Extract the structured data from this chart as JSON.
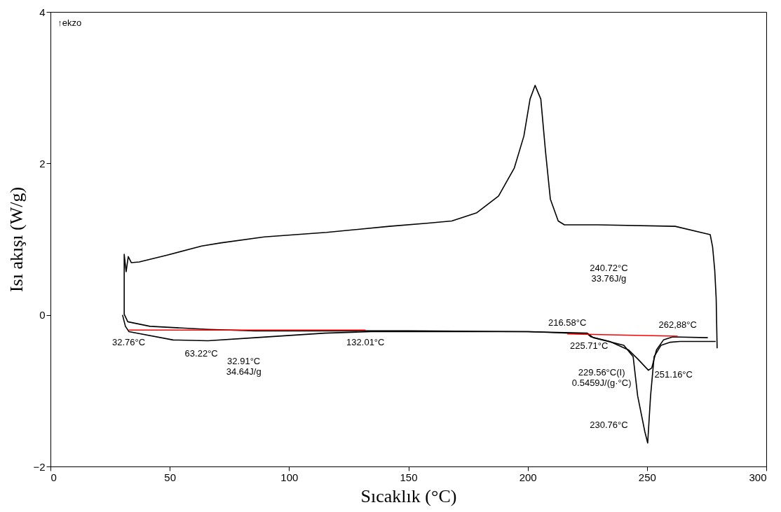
{
  "chart_data": {
    "type": "line",
    "xlabel": "Sıcaklık (°C)",
    "ylabel": "Isı akışı (W/g)",
    "xlim": [
      0,
      300
    ],
    "xticks": [
      0,
      50,
      100,
      150,
      200,
      250,
      300
    ],
    "ylim": [
      -2,
      4
    ],
    "yticks": [
      -2,
      0,
      2,
      4
    ],
    "grid": false,
    "marker": "none",
    "line_style": "solid",
    "series": [
      {
        "color": "#000000",
        "x": [
          30.2,
          31.4,
          32.9,
          51.4,
          66,
          85.7,
          115,
          134.6,
          160,
          200,
          225,
          227.5,
          240.3,
          244.2,
          246.1,
          249.1,
          250.3,
          251.5,
          253,
          255.9,
          259.8,
          263.8,
          278.8
        ],
        "values": [
          0.0,
          -0.15,
          -0.22,
          -0.33,
          -0.34,
          -0.3,
          -0.24,
          -0.22,
          -0.22,
          -0.22,
          -0.24,
          -0.3,
          -0.4,
          -0.55,
          -1.07,
          -1.54,
          -1.69,
          -1.07,
          -0.55,
          -0.4,
          -0.36,
          -0.35,
          -0.35
        ]
      },
      {
        "color": "#000000",
        "x": [
          279.4,
          279.0,
          278.4,
          277.5,
          276.5,
          261.8,
          229.5,
          215.4,
          212.8,
          209.5,
          207.5,
          205.5,
          203.1,
          201.0,
          198.4,
          194.4,
          187.8,
          178.7,
          168.2,
          157.7,
          142.0,
          115.8,
          89.6,
          71.2,
          63.4,
          48.9,
          37.2,
          33.9,
          32.6,
          31.7,
          30.9,
          30.9,
          32.4,
          41.7,
          66,
          85.7,
          150,
          200,
          225,
          226.6,
          234.4,
          242.2,
          246.1,
          250.6,
          252,
          254,
          256.9,
          260.8,
          275.5
        ],
        "values": [
          -0.44,
          0.22,
          0.59,
          0.9,
          1.06,
          1.17,
          1.19,
          1.19,
          1.24,
          1.53,
          2.15,
          2.85,
          3.03,
          2.85,
          2.36,
          1.94,
          1.57,
          1.35,
          1.24,
          1.21,
          1.17,
          1.09,
          1.03,
          0.95,
          0.91,
          0.79,
          0.7,
          0.69,
          0.77,
          0.57,
          0.8,
          0.01,
          -0.09,
          -0.15,
          -0.19,
          -0.21,
          -0.21,
          -0.22,
          -0.25,
          -0.29,
          -0.35,
          -0.46,
          -0.58,
          -0.73,
          -0.7,
          -0.46,
          -0.33,
          -0.29,
          -0.3
        ]
      },
      {
        "color": "#ff0000",
        "x": [
          32.76,
          132.01
        ],
        "values": [
          -0.2,
          -0.2
        ]
      },
      {
        "color": "#ff0000",
        "x": [
          216.58,
          262.88
        ],
        "values": [
          -0.25,
          -0.28
        ]
      }
    ],
    "annotations": [
      "↑ekzo",
      {
        "text": "32.76°C",
        "x": 32.76,
        "y": -0.2
      },
      {
        "text": "63.22°C",
        "x": 63.22,
        "y": -0.33
      },
      {
        "text": "132.01°C",
        "x": 132.01,
        "y": -0.2
      },
      {
        "text": "225.71°C",
        "x": 225.71,
        "y": -0.24
      },
      {
        "text": "216.58°C",
        "x": 216.58,
        "y": -0.25
      },
      {
        "text": "262,88°C",
        "x": 262.88,
        "y": -0.28
      },
      {
        "text": "251.16°C",
        "x": 251.16,
        "y": -0.75
      },
      "32.91°C\n34.64J/g",
      "240.72°C\n33.76J/g",
      "229.56°C(I)\n0.5459J/(g·°C)",
      "230.76°C"
    ]
  }
}
